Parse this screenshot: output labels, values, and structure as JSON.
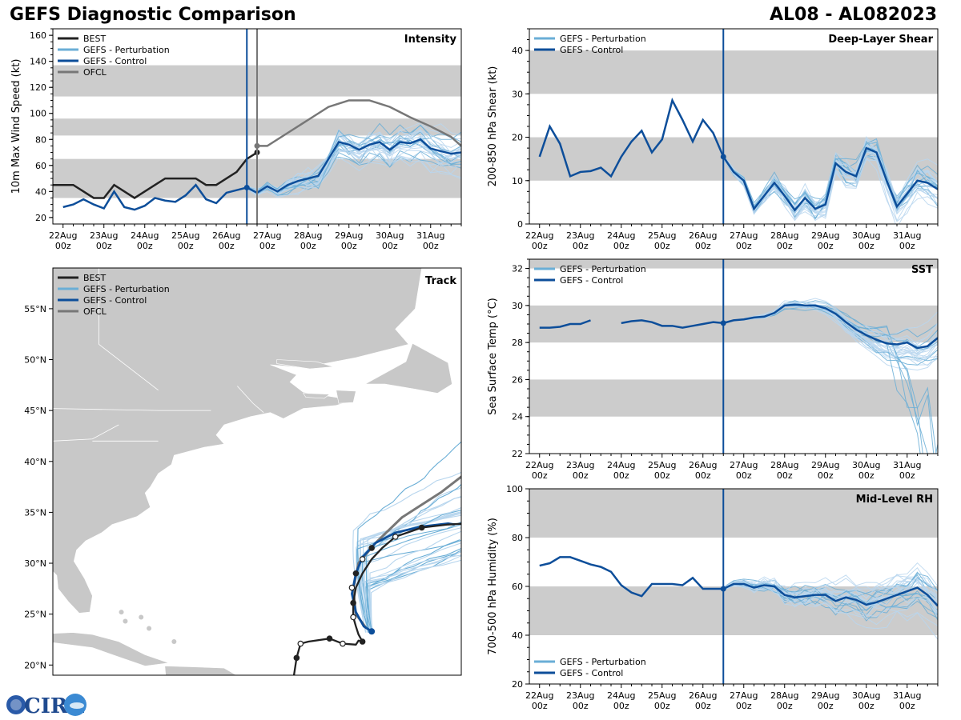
{
  "header": {
    "title_left": "GEFS Diagnostic Comparison",
    "title_right": "AL08 - AL082023"
  },
  "logo": {
    "text": "CIRA"
  },
  "x_ticks": [
    {
      "day": "22Aug",
      "hour": "00z"
    },
    {
      "day": "23Aug",
      "hour": "00z"
    },
    {
      "day": "24Aug",
      "hour": "00z"
    },
    {
      "day": "25Aug",
      "hour": "00z"
    },
    {
      "day": "26Aug",
      "hour": "00z"
    },
    {
      "day": "27Aug",
      "hour": "00z"
    },
    {
      "day": "28Aug",
      "hour": "00z"
    },
    {
      "day": "29Aug",
      "hour": "00z"
    },
    {
      "day": "30Aug",
      "hour": "00z"
    },
    {
      "day": "31Aug",
      "hour": "00z"
    }
  ],
  "colors": {
    "best": "#222222",
    "perturbation": "#6aaed6",
    "perturbation_light": "#b8d6ee",
    "control": "#0d4e9a",
    "ofcl": "#777777",
    "band": "#cccccc",
    "land": "#c8c8c8"
  },
  "chart_data": [
    {
      "id": "intensity",
      "type": "line",
      "title": "Intensity",
      "ylabel": "10m Max Wind Speed (kt)",
      "x_unit": "days since 22Aug 00z",
      "xlim": [
        -0.25,
        9.75
      ],
      "ylim": [
        15,
        165
      ],
      "yticks": [
        20,
        40,
        60,
        80,
        100,
        120,
        140,
        160
      ],
      "bands": [
        [
          35,
          65
        ],
        [
          83,
          96
        ],
        [
          113,
          137
        ]
      ],
      "init_line": 4.5,
      "ofcl_line": 4.75,
      "legend": [
        "BEST",
        "GEFS - Perturbation",
        "GEFS - Control",
        "OFCL"
      ],
      "best": {
        "x": [
          -0.25,
          0,
          0.25,
          0.5,
          0.75,
          1.0,
          1.25,
          1.5,
          1.75,
          2.0,
          2.25,
          2.5,
          2.75,
          3.0,
          3.25,
          3.5,
          3.75,
          4.0,
          4.25,
          4.5,
          4.75
        ],
        "y": [
          45,
          45,
          45,
          40,
          35,
          35,
          45,
          40,
          35,
          40,
          45,
          50,
          50,
          50,
          50,
          45,
          45,
          50,
          55,
          65,
          70
        ]
      },
      "control": {
        "x": [
          0,
          0.25,
          0.5,
          0.75,
          1.0,
          1.25,
          1.5,
          1.75,
          2.0,
          2.25,
          2.5,
          2.75,
          3.0,
          3.25,
          3.5,
          3.75,
          4.0,
          4.25,
          4.5,
          4.75,
          5.0,
          5.25,
          5.5,
          5.75,
          6.0,
          6.25,
          6.5,
          6.75,
          7.0,
          7.25,
          7.5,
          7.75,
          8.0,
          8.25,
          8.5,
          8.75,
          9.0,
          9.25,
          9.5,
          9.75
        ],
        "y": [
          28,
          30,
          34,
          30,
          27,
          40,
          28,
          26,
          29,
          35,
          33,
          32,
          37,
          45,
          34,
          31,
          39,
          41,
          43,
          39,
          44,
          40,
          45,
          48,
          50,
          52,
          65,
          78,
          76,
          72,
          76,
          78,
          72,
          78,
          77,
          80,
          73,
          71,
          69,
          70
        ]
      },
      "ofcl": {
        "x": [
          4.75,
          5.0,
          5.5,
          6.0,
          6.5,
          7.0,
          7.5,
          8.0,
          8.5,
          9.0,
          9.5,
          9.75
        ],
        "y": [
          75,
          75,
          85,
          95,
          105,
          110,
          110,
          105,
          97,
          90,
          82,
          75
        ]
      },
      "perturbation_count": 30
    },
    {
      "id": "shear",
      "type": "line",
      "title": "Deep-Layer Shear",
      "ylabel": "200-850 hPa Shear (kt)",
      "xlim": [
        -0.25,
        9.75
      ],
      "ylim": [
        0,
        45
      ],
      "yticks": [
        0,
        10,
        20,
        30,
        40
      ],
      "bands": [
        [
          10,
          20
        ],
        [
          30,
          40
        ]
      ],
      "init_line": 4.5,
      "legend": [
        "GEFS - Perturbation",
        "GEFS - Control"
      ],
      "control": {
        "x": [
          0,
          0.25,
          0.5,
          0.75,
          1.0,
          1.25,
          1.5,
          1.75,
          2.0,
          2.25,
          2.5,
          2.75,
          3.0,
          3.25,
          3.5,
          3.75,
          4.0,
          4.25,
          4.5,
          4.75,
          5.0,
          5.25,
          5.5,
          5.75,
          6.0,
          6.25,
          6.5,
          6.75,
          7.0,
          7.25,
          7.5,
          7.75,
          8.0,
          8.25,
          8.5,
          8.75,
          9.0,
          9.25,
          9.5,
          9.75
        ],
        "y": [
          15.5,
          22.5,
          18.5,
          11,
          12,
          12.2,
          13,
          11,
          15.5,
          19,
          21.5,
          16.5,
          19.5,
          28.5,
          24,
          19,
          24,
          21,
          15.5,
          12,
          10,
          3.5,
          6.5,
          9.5,
          6.5,
          3.2,
          6,
          3.5,
          4.5,
          14,
          12,
          11,
          17.5,
          16.5,
          10,
          4,
          7,
          10,
          9.5,
          8
        ]
      },
      "perturbation_count": 30
    },
    {
      "id": "sst",
      "type": "line",
      "title": "SST",
      "ylabel": "Sea Surface Temp (°C)",
      "xlim": [
        -0.25,
        9.75
      ],
      "ylim": [
        22,
        32.5
      ],
      "yticks": [
        22,
        24,
        26,
        28,
        30,
        32
      ],
      "bands": [
        [
          24,
          26
        ],
        [
          28,
          30
        ],
        [
          32,
          34
        ]
      ],
      "init_line": 4.5,
      "legend": [
        "GEFS - Perturbation",
        "GEFS - Control"
      ],
      "control_segments": [
        {
          "x": [
            0,
            0.25,
            0.5,
            0.75,
            1.0,
            1.25
          ],
          "y": [
            28.8,
            28.8,
            28.85,
            29.0,
            29.0,
            29.2
          ]
        },
        {
          "x": [
            2.0,
            2.25,
            2.5,
            2.75,
            3.0,
            3.25,
            3.5,
            3.75,
            4.0,
            4.25,
            4.5,
            4.75,
            5.0,
            5.25,
            5.5,
            5.75,
            6.0,
            6.25,
            6.5,
            6.75,
            7.0,
            7.25,
            7.5,
            7.75,
            8.0,
            8.25,
            8.5,
            8.75,
            9.0,
            9.25,
            9.5,
            9.75
          ],
          "y": [
            29.05,
            29.15,
            29.2,
            29.1,
            28.9,
            28.9,
            28.8,
            28.9,
            29.0,
            29.1,
            29.05,
            29.2,
            29.25,
            29.35,
            29.4,
            29.6,
            30.0,
            30.05,
            30.0,
            30.0,
            29.85,
            29.55,
            29.1,
            28.7,
            28.4,
            28.15,
            27.95,
            27.9,
            28.0,
            27.7,
            27.8,
            28.25
          ]
        }
      ],
      "perturbation_count": 30
    },
    {
      "id": "rh",
      "type": "line",
      "title": "Mid-Level RH",
      "ylabel": "700-500 hPa Humidity (%)",
      "xlim": [
        -0.25,
        9.75
      ],
      "ylim": [
        20,
        100
      ],
      "yticks": [
        20,
        40,
        60,
        80,
        100
      ],
      "bands": [
        [
          40,
          60
        ],
        [
          80,
          100
        ]
      ],
      "init_line": 4.5,
      "legend": [
        "GEFS - Perturbation",
        "GEFS - Control"
      ],
      "control": {
        "x": [
          0,
          0.25,
          0.5,
          0.75,
          1.0,
          1.25,
          1.5,
          1.75,
          2.0,
          2.25,
          2.5,
          2.75,
          3.0,
          3.25,
          3.5,
          3.75,
          4.0,
          4.25,
          4.5,
          4.75,
          5.0,
          5.25,
          5.5,
          5.75,
          6.0,
          6.25,
          6.5,
          6.75,
          7.0,
          7.25,
          7.5,
          7.75,
          8.0,
          8.25,
          8.5,
          8.75,
          9.0,
          9.25,
          9.5,
          9.75
        ],
        "y": [
          68.5,
          69.5,
          72,
          72,
          70.5,
          69,
          68,
          66,
          60.5,
          57.5,
          56,
          61,
          61,
          61,
          60.5,
          63.5,
          59,
          59,
          59,
          61,
          61,
          59.5,
          60.5,
          60,
          56.5,
          55.5,
          56,
          56.5,
          56.5,
          54,
          55.5,
          54.5,
          52.5,
          53.5,
          55,
          56.5,
          58,
          59.5,
          56.5,
          52
        ]
      },
      "perturbation_count": 30
    },
    {
      "id": "track",
      "type": "map",
      "title": "Track",
      "legend": [
        "BEST",
        "GEFS - Perturbation",
        "GEFS - Control",
        "OFCL"
      ],
      "lat_ticks": [
        "20°N",
        "25°N",
        "30°N",
        "35°N",
        "40°N",
        "45°N",
        "50°N",
        "55°N"
      ],
      "lat_values": [
        20,
        25,
        30,
        35,
        40,
        45,
        50,
        55
      ],
      "lon_range": [
        -83,
        -52
      ],
      "lat_range": [
        19,
        59
      ],
      "best": {
        "lon": [
          -65.0,
          -64.7,
          -64.5,
          -64.2,
          -63.6,
          -62.0,
          -61.0,
          -60.0,
          -59.8,
          -59.5,
          -59.8,
          -60.0,
          -60.2,
          -60.2,
          -60.0,
          -59.5,
          -58.8,
          -58.0,
          -57.0,
          -55.0,
          -53.0,
          -51.7
        ],
        "lat": [
          18.0,
          19.0,
          20.7,
          22.1,
          22.3,
          22.6,
          22.1,
          22.0,
          22.4,
          22.3,
          23.0,
          23.8,
          24.7,
          26.1,
          27.6,
          29.0,
          30.4,
          31.5,
          32.6,
          33.5,
          33.8,
          33.9
        ]
      },
      "best_markers": [
        {
          "lon": -64.5,
          "lat": 20.7,
          "filled": true
        },
        {
          "lon": -64.2,
          "lat": 22.1,
          "filled": false
        },
        {
          "lon": -62.0,
          "lat": 22.6,
          "filled": true
        },
        {
          "lon": -61.0,
          "lat": 22.1,
          "filled": false
        },
        {
          "lon": -59.5,
          "lat": 22.3,
          "filled": true
        },
        {
          "lon": -60.2,
          "lat": 24.7,
          "filled": false
        },
        {
          "lon": -60.2,
          "lat": 26.1,
          "filled": true
        },
        {
          "lon": -60.3,
          "lat": 27.6,
          "filled": false
        },
        {
          "lon": -60.0,
          "lat": 29.0,
          "filled": true
        },
        {
          "lon": -59.5,
          "lat": 30.4,
          "filled": false
        },
        {
          "lon": -58.8,
          "lat": 31.5,
          "filled": true
        },
        {
          "lon": -57.0,
          "lat": 32.6,
          "filled": false
        },
        {
          "lon": -55.0,
          "lat": 33.5,
          "filled": true
        },
        {
          "lon": -51.8,
          "lat": 33.9,
          "filled": false
        }
      ],
      "control": {
        "lon": [
          -58.8,
          -59.4,
          -60.0,
          -60.3,
          -60.0,
          -59.5,
          -58.5,
          -57.0,
          -55.0,
          -53.0,
          -52.5
        ],
        "lat": [
          23.3,
          23.8,
          25.2,
          27.0,
          29.0,
          30.6,
          32.0,
          33.0,
          33.6,
          33.9,
          33.8
        ]
      },
      "ofcl": {
        "lon": [
          -59.2,
          -60.0,
          -60.2,
          -59.8,
          -58.5,
          -56.5,
          -53.5,
          -51.5
        ],
        "lat": [
          23.6,
          25.0,
          27.5,
          30.0,
          32.0,
          34.5,
          37.0,
          39.0
        ]
      },
      "perturbation_count": 28
    }
  ]
}
